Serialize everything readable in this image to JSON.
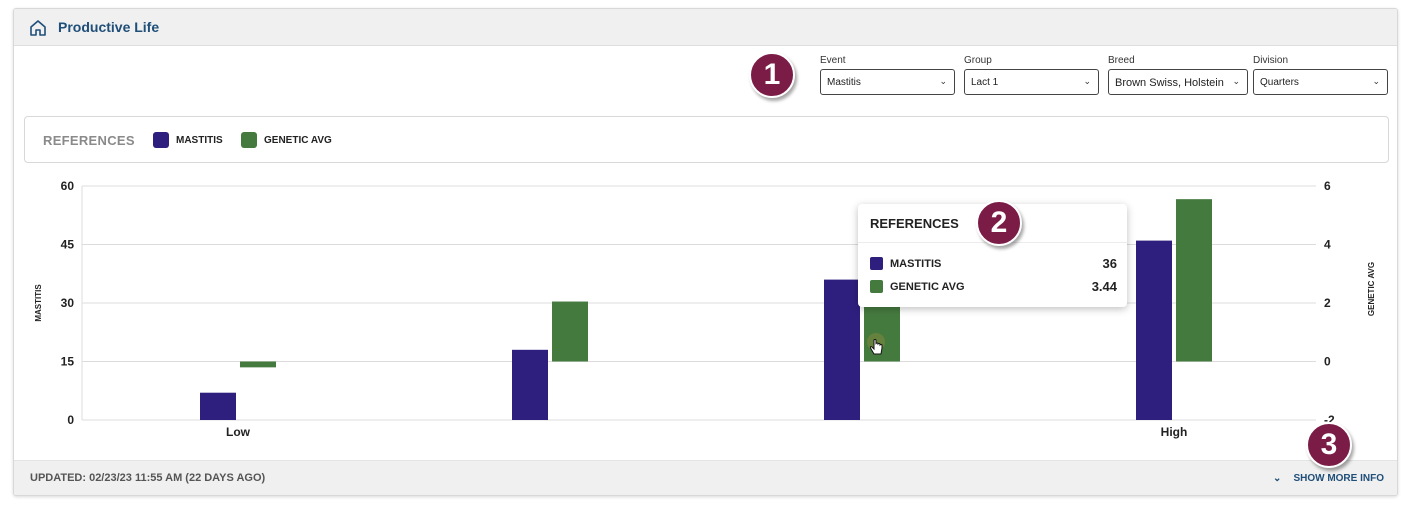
{
  "header": {
    "title": "Productive Life",
    "icon": "home-icon"
  },
  "callouts": [
    "1",
    "2",
    "3"
  ],
  "filters": [
    {
      "label": "Event",
      "value": "Mastitis"
    },
    {
      "label": "Group",
      "value": "Lact 1"
    },
    {
      "label": "Breed",
      "value": "Brown Swiss, Holstein"
    },
    {
      "label": "Division",
      "value": "Quarters"
    }
  ],
  "references": {
    "title": "REFERENCES",
    "items": [
      {
        "label": "MASTITIS",
        "color": "#2e1f7e"
      },
      {
        "label": "GENETIC AVG",
        "color": "#457a3f"
      }
    ]
  },
  "chart_data": {
    "type": "bar",
    "categories": [
      "Low",
      "",
      "",
      "High"
    ],
    "series": [
      {
        "name": "MASTITIS",
        "axis": "left",
        "color": "#2e1f7e",
        "values": [
          7,
          18,
          36,
          46
        ]
      },
      {
        "name": "GENETIC AVG",
        "axis": "right",
        "color": "#457a3f",
        "values": [
          -0.2,
          2.05,
          3.44,
          5.55
        ]
      }
    ],
    "ylabel": "MASTITIS",
    "y2label": "GENETIC AVG",
    "ylim": [
      0,
      60
    ],
    "y2lim": [
      -2,
      6
    ],
    "yticks": [
      "0",
      "15",
      "30",
      "45",
      "60"
    ],
    "y2ticks": [
      "-2",
      "0",
      "2",
      "4",
      "6"
    ],
    "grid": true
  },
  "tooltip": {
    "title": "REFERENCES",
    "rows": [
      {
        "label": "MASTITIS",
        "value": "36",
        "color": "#2e1f7e"
      },
      {
        "label": "GENETIC AVG",
        "value": "3.44",
        "color": "#457a3f"
      }
    ]
  },
  "footer": {
    "updated": "UPDATED: 02/23/23 11:55 AM (22 DAYS AGO)",
    "show_more": "SHOW MORE INFO"
  }
}
